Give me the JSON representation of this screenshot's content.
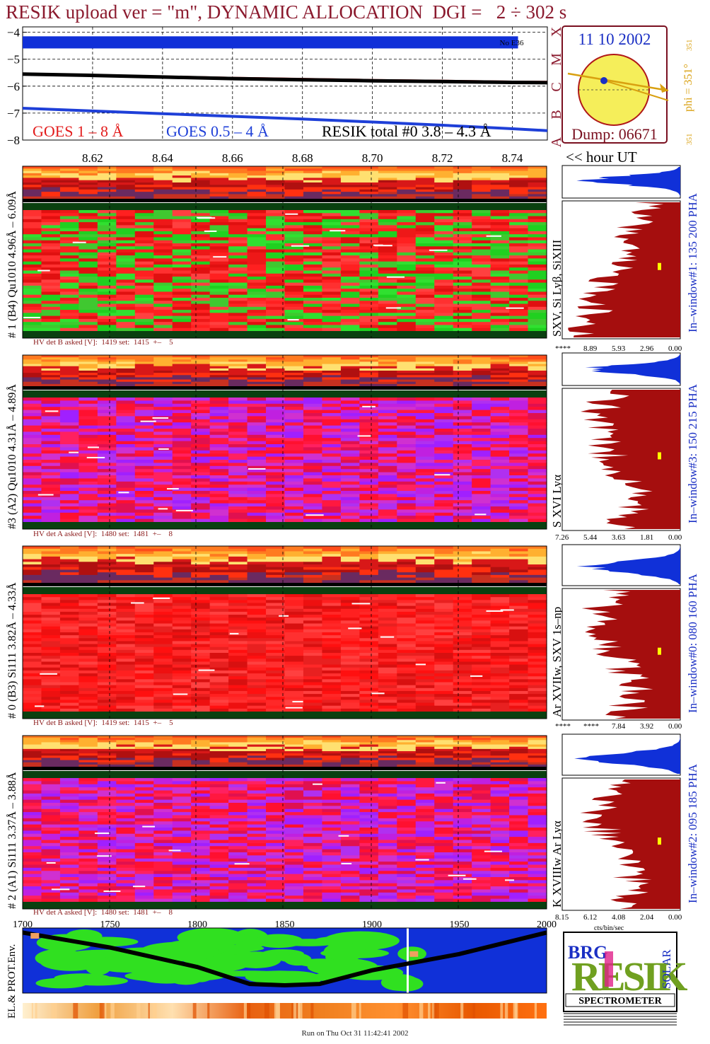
{
  "header": {
    "title": "RESIK upload ver = \"m\", DYNAMIC ALLOCATION  DGI =   2 ÷ 302 s",
    "date": "11 10 2002",
    "dump": "Dump: 06671",
    "phi": "phi = 351°",
    "phi_small_top": "351",
    "phi_small_bottom": "351",
    "goes_class_letters": [
      "X",
      "M",
      "C",
      "B",
      "A"
    ],
    "hour_ut": "<< hour UT",
    "run_on": "Run on Thu Oct 31 11:42:41 2002"
  },
  "colors": {
    "title": "#8b1a2e",
    "goes_long": "#e31b1b",
    "goes_short": "#1e3fd8",
    "resik": "#000000",
    "panel_blue": "#1030d8",
    "histogram_red": "#a50e0e",
    "sun_yellow": "#f5ee5a",
    "sun_border": "#b01818",
    "phi_orange": "#d9a010"
  },
  "goes_panel": {
    "legend_goes_long": "GOES 1 – 8 Å",
    "legend_goes_short": "GOES 0.5 – 4 Å",
    "legend_resik": "RESIK total #0  3.8 – 4.3 Å",
    "bar_label": "No E36",
    "y_ticks": [
      "−4",
      "−5",
      "−6",
      "−7",
      "−8"
    ],
    "x_ticks": [
      "8.62",
      "8.64",
      "8.66",
      "8.68",
      "8.70",
      "8.72",
      "8.74"
    ]
  },
  "channels": [
    {
      "label": "# 1 (B4) Qu1010 4.96Å – 6.09Å",
      "lines": "SXV, Si Lyβ, SiXIII",
      "window": "In–window#1:  135 200 PHA",
      "hv": "HV det B asked [V]:  1419 set:  1415  +–    5",
      "hist_ticks": [
        "****",
        "8.89",
        "5.93",
        "2.96",
        "0.00"
      ]
    },
    {
      "label": "#3 (A2) Qu1010  4.31Å – 4.89Å",
      "lines": "S XVI Lyα",
      "window": "In–window#3:  150 215 PHA",
      "hv": "HV det A asked [V]:  1480 set:  1481  +–    8",
      "hist_ticks": [
        "7.26",
        "5.44",
        "3.63",
        "1.81",
        "0.00"
      ]
    },
    {
      "label": "# 0 (B3) Si111  3.82Å – 4.33Å",
      "lines": "Ar XVIIw, SXV 1s–np",
      "window": "In–window#0:  080 160 PHA",
      "hv": "HV det B asked [V]:  1419 set:  1415  +–    5",
      "hist_ticks": [
        "****",
        "****",
        "7.84",
        "3.92",
        "0.00"
      ]
    },
    {
      "label": "# 2 (A1) Si111  3.37Å –  3.88Å",
      "lines": "K XVIIIw  Ar Lyα",
      "window": "In–window#2:  095 185 PHA",
      "hv": "HV det A asked [V]:  1480 set:  1481  +–    8",
      "hist_ticks": [
        "8.15",
        "6.12",
        "4.08",
        "2.04",
        "0.00"
      ],
      "hist_unit": "cts/bin/sec"
    }
  ],
  "orbit_panel": {
    "label": "EL.& PROT.Env.",
    "x_ticks": [
      "1700",
      "1750",
      "1800",
      "1850",
      "1900",
      "1950",
      "2000"
    ]
  },
  "logo": {
    "letters_top": "BRG",
    "big": "RESIK",
    "side": "SOLAR",
    "caption": "SPECTROMETER"
  },
  "chart_data": [
    {
      "type": "line",
      "title": "",
      "xlabel": "<< hour UT",
      "ylabel": "",
      "x": [
        8.6,
        8.62,
        8.64,
        8.66,
        8.68,
        8.7,
        8.72,
        8.74,
        8.75
      ],
      "series": [
        {
          "name": "GOES 1 – 8 Å",
          "values": [
            -5.52,
            -5.58,
            -5.63,
            -5.68,
            -5.72,
            -5.76,
            -5.79,
            -5.82,
            -5.83
          ]
        },
        {
          "name": "GOES 0.5 – 4 Å",
          "values": [
            -6.82,
            -6.92,
            -7.02,
            -7.12,
            -7.22,
            -7.33,
            -7.45,
            -7.58,
            -7.65
          ]
        },
        {
          "name": "RESIK total #0  3.8 – 4.3 Å",
          "values": [
            -5.55,
            -5.6,
            -5.66,
            -5.72,
            -5.76,
            -5.8,
            -5.83,
            -5.86,
            -5.87
          ]
        }
      ],
      "xlim": [
        8.6,
        8.75
      ],
      "ylim": [
        -8,
        -3.8
      ],
      "grid": true,
      "legend_position": "bottom"
    },
    {
      "type": "heatmap",
      "title": "",
      "xlabel": "",
      "x_ticks": [
        1700,
        1750,
        1800,
        1850,
        1900,
        1950,
        2000
      ],
      "xlim": [
        1700,
        2000
      ],
      "track": {
        "x": [
          1700,
          1750,
          1800,
          1830,
          1850,
          1870,
          1900,
          1950,
          2000
        ],
        "y": [
          0.93,
          0.7,
          0.4,
          0.14,
          0.12,
          0.14,
          0.35,
          0.6,
          0.93
        ]
      }
    }
  ]
}
